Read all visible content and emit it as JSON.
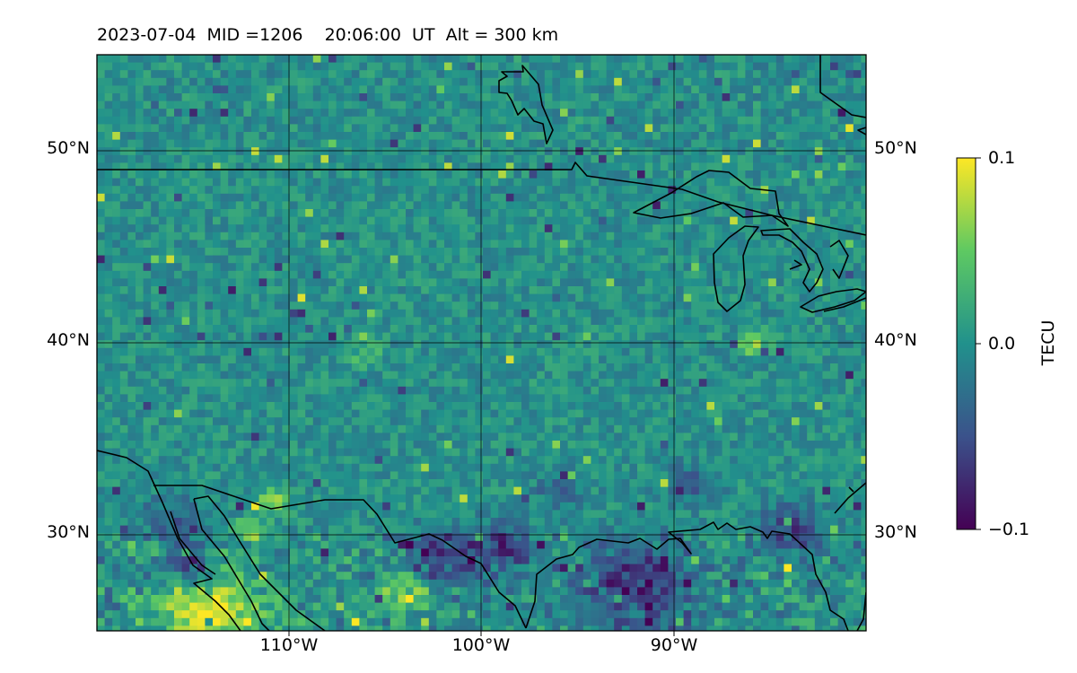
{
  "title": "2023-07-04  MID =1206    20:06:00  UT  Alt = 300 km",
  "map": {
    "lat_labels": [
      "50°N",
      "40°N",
      "30°N"
    ],
    "lon_labels": [
      "110°W",
      "100°W",
      "90°W"
    ],
    "extent": {
      "lon_min": -120,
      "lon_max": -80,
      "lat_min": 25,
      "lat_max": 55
    },
    "field": "Ionospheric total electron content perturbation (TECU), viridis colormap, mostly near 0 with yellow positive patches in the southwest and dark purple negative patches along the southern border"
  },
  "colorbar": {
    "label": "TECU",
    "ticks": [
      "0.1",
      "0.0",
      "−0.1"
    ],
    "min": -0.1,
    "max": 0.1,
    "colormap": "viridis"
  },
  "colors": {
    "coastline": "#000000",
    "grid": "#000000",
    "viridis_low": "#440154",
    "viridis_mid": "#21918c",
    "viridis_high": "#fde725"
  }
}
